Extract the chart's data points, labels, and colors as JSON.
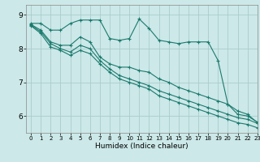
{
  "background_color": "#cce8e8",
  "grid_color": "#aacccc",
  "line_color": "#1a7a6e",
  "xlabel": "Humidex (Indice chaleur)",
  "xlim": [
    -0.5,
    23
  ],
  "ylim": [
    5.5,
    9.3
  ],
  "yticks": [
    6,
    7,
    8,
    9
  ],
  "xticks": [
    0,
    1,
    2,
    3,
    4,
    5,
    6,
    7,
    8,
    9,
    10,
    11,
    12,
    13,
    14,
    15,
    16,
    17,
    18,
    19,
    20,
    21,
    22,
    23
  ],
  "line1_x": [
    0,
    1,
    2,
    3,
    4,
    5,
    6,
    7,
    8,
    9,
    10,
    11,
    12,
    13,
    14,
    15,
    16,
    17,
    18,
    19,
    20,
    21,
    22,
    23
  ],
  "line1_y": [
    8.75,
    8.75,
    8.55,
    8.55,
    8.75,
    8.85,
    8.85,
    8.85,
    8.3,
    8.25,
    8.3,
    8.88,
    8.6,
    8.25,
    8.2,
    8.15,
    8.2,
    8.2,
    8.2,
    7.65,
    6.35,
    6.05,
    6.0,
    5.82
  ],
  "line2_x": [
    0,
    1,
    2,
    3,
    4,
    5,
    6,
    7,
    8,
    9,
    10,
    11,
    12,
    13,
    14,
    15,
    16,
    17,
    18,
    19,
    20,
    21,
    22,
    23
  ],
  "line2_y": [
    8.72,
    8.55,
    8.2,
    8.1,
    8.1,
    8.35,
    8.2,
    7.75,
    7.55,
    7.45,
    7.45,
    7.35,
    7.3,
    7.1,
    7.0,
    6.85,
    6.75,
    6.65,
    6.55,
    6.45,
    6.35,
    6.15,
    6.05,
    5.8
  ],
  "line3_x": [
    0,
    1,
    2,
    3,
    4,
    5,
    6,
    7,
    8,
    9,
    10,
    11,
    12,
    13,
    14,
    15,
    16,
    17,
    18,
    19,
    20,
    21,
    22,
    23
  ],
  "line3_y": [
    8.7,
    8.5,
    8.15,
    8.0,
    7.9,
    8.1,
    8.0,
    7.65,
    7.4,
    7.2,
    7.1,
    7.0,
    6.9,
    6.75,
    6.65,
    6.55,
    6.45,
    6.35,
    6.25,
    6.15,
    6.05,
    5.95,
    5.9,
    5.78
  ],
  "line4_x": [
    0,
    1,
    2,
    3,
    4,
    5,
    6,
    7,
    8,
    9,
    10,
    11,
    12,
    13,
    14,
    15,
    16,
    17,
    18,
    19,
    20,
    21,
    22,
    23
  ],
  "line4_y": [
    8.68,
    8.45,
    8.05,
    7.95,
    7.8,
    7.95,
    7.85,
    7.55,
    7.3,
    7.1,
    7.0,
    6.9,
    6.8,
    6.6,
    6.5,
    6.4,
    6.3,
    6.2,
    6.1,
    6.0,
    5.9,
    5.8,
    5.75,
    5.65
  ]
}
